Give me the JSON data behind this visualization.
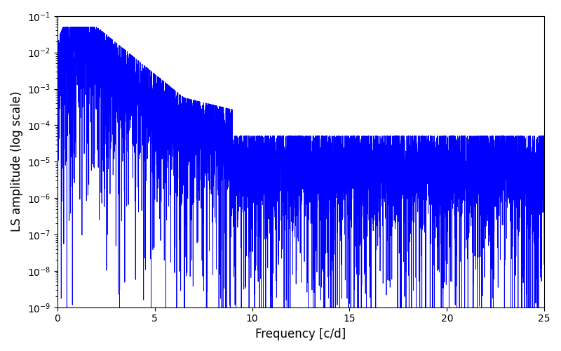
{
  "title": "",
  "xlabel": "Frequency [c/d]",
  "ylabel": "LS amplitude (log scale)",
  "xlim": [
    0,
    25
  ],
  "ylim": [
    1e-09,
    0.1
  ],
  "line_color": "#0000ff",
  "line_width": 0.6,
  "figsize": [
    8.0,
    5.0
  ],
  "dpi": 100,
  "freq_max": 25.0,
  "n_points": 8000,
  "seed": 123,
  "background_color": "#ffffff"
}
